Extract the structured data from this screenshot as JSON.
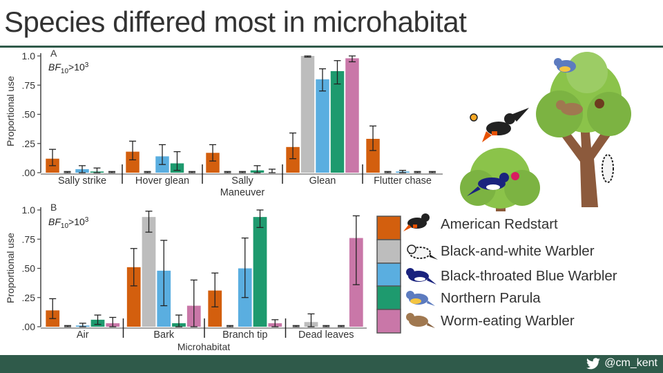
{
  "slide": {
    "title": "Species differed most in microhabitat",
    "footer_handle": "@cm_kent"
  },
  "colors": {
    "rule": "#2f5a4a",
    "species": [
      "#d35f0e",
      "#bdbdbd",
      "#5aaee0",
      "#1e9a6e",
      "#c977a8"
    ]
  },
  "legend": [
    {
      "label": "American Redstart",
      "color": "#d35f0e",
      "icon": "american-redstart-icon"
    },
    {
      "label": "Black-and-white Warbler",
      "color": "#bdbdbd",
      "icon": "black-and-white-warbler-icon"
    },
    {
      "label": "Black-throated Blue Warbler",
      "color": "#5aaee0",
      "icon": "black-throated-blue-warbler-icon"
    },
    {
      "label": "Northern Parula",
      "color": "#1e9a6e",
      "icon": "northern-parula-icon"
    },
    {
      "label": "Worm-eating Warbler",
      "color": "#c977a8",
      "icon": "worm-eating-warbler-icon"
    }
  ],
  "chart_data": [
    {
      "type": "bar",
      "panel": "A",
      "annotation": {
        "base": "BF",
        "sub": "10",
        "rel": ">10",
        "sup": "3"
      },
      "ylabel": "Proportional use",
      "xlabel": "",
      "ylim": [
        0,
        1.0
      ],
      "ytick_labels": [
        ".00",
        ".25",
        ".50",
        ".75",
        "1.0"
      ],
      "yticks": [
        0,
        0.25,
        0.5,
        0.75,
        1.0
      ],
      "categories": [
        "Sally strike",
        "Hover glean",
        "Sally\nManeuver",
        "Glean",
        "Flutter chase"
      ],
      "series": [
        {
          "name": "American Redstart",
          "values": [
            0.12,
            0.18,
            0.17,
            0.22,
            0.29
          ],
          "err_low": [
            0.06,
            0.11,
            0.1,
            0.12,
            0.19
          ],
          "err_high": [
            0.2,
            0.27,
            0.24,
            0.34,
            0.4
          ]
        },
        {
          "name": "Black-and-white Warbler",
          "values": [
            0.0,
            0.0,
            0.0,
            1.0,
            0.0
          ],
          "err_low": [
            0.0,
            0.0,
            0.0,
            0.99,
            0.0
          ],
          "err_high": [
            0.01,
            0.01,
            0.01,
            1.0,
            0.01
          ]
        },
        {
          "name": "Black-throated Blue Warbler",
          "values": [
            0.03,
            0.14,
            0.0,
            0.8,
            0.01
          ],
          "err_low": [
            0.0,
            0.07,
            0.0,
            0.7,
            0.0
          ],
          "err_high": [
            0.06,
            0.24,
            0.01,
            0.89,
            0.02
          ]
        },
        {
          "name": "Northern Parula",
          "values": [
            0.01,
            0.08,
            0.02,
            0.87,
            0.0
          ],
          "err_low": [
            0.0,
            0.02,
            0.0,
            0.76,
            0.0
          ],
          "err_high": [
            0.04,
            0.18,
            0.06,
            0.96,
            0.01
          ]
        },
        {
          "name": "Worm-eating Warbler",
          "values": [
            0.0,
            0.0,
            0.0,
            0.98,
            0.0
          ],
          "err_low": [
            0.0,
            0.0,
            0.0,
            0.95,
            0.0
          ],
          "err_high": [
            0.01,
            0.01,
            0.03,
            1.0,
            0.01
          ]
        }
      ]
    },
    {
      "type": "bar",
      "panel": "B",
      "annotation": {
        "base": "BF",
        "sub": "10",
        "rel": ">10",
        "sup": "3"
      },
      "ylabel": "Proportional use",
      "xlabel": "Microhabitat",
      "ylim": [
        0,
        1.0
      ],
      "ytick_labels": [
        ".00",
        ".25",
        ".50",
        ".75",
        "1.0"
      ],
      "yticks": [
        0,
        0.25,
        0.5,
        0.75,
        1.0
      ],
      "categories": [
        "Air",
        "Bark",
        "Branch tip",
        "Dead leaves"
      ],
      "series": [
        {
          "name": "American Redstart",
          "values": [
            0.14,
            0.51,
            0.31,
            0.0
          ],
          "err_low": [
            0.07,
            0.35,
            0.17,
            0.0
          ],
          "err_high": [
            0.24,
            0.67,
            0.46,
            0.01
          ]
        },
        {
          "name": "Black-and-white Warbler",
          "values": [
            0.0,
            0.94,
            0.0,
            0.04
          ],
          "err_low": [
            0.0,
            0.81,
            0.0,
            0.0
          ],
          "err_high": [
            0.01,
            0.99,
            0.01,
            0.11
          ]
        },
        {
          "name": "Black-throated Blue Warbler",
          "values": [
            0.01,
            0.48,
            0.5,
            0.0
          ],
          "err_low": [
            0.0,
            0.18,
            0.25,
            0.0
          ],
          "err_high": [
            0.03,
            0.74,
            0.76,
            0.01
          ]
        },
        {
          "name": "Northern Parula",
          "values": [
            0.06,
            0.03,
            0.94,
            0.0
          ],
          "err_low": [
            0.02,
            0.0,
            0.85,
            0.0
          ],
          "err_high": [
            0.1,
            0.1,
            1.0,
            0.01
          ]
        },
        {
          "name": "Worm-eating Warbler",
          "values": [
            0.03,
            0.18,
            0.03,
            0.76
          ],
          "err_low": [
            0.0,
            0.0,
            0.0,
            0.36
          ],
          "err_high": [
            0.08,
            0.4,
            0.06,
            0.95
          ]
        }
      ]
    }
  ]
}
